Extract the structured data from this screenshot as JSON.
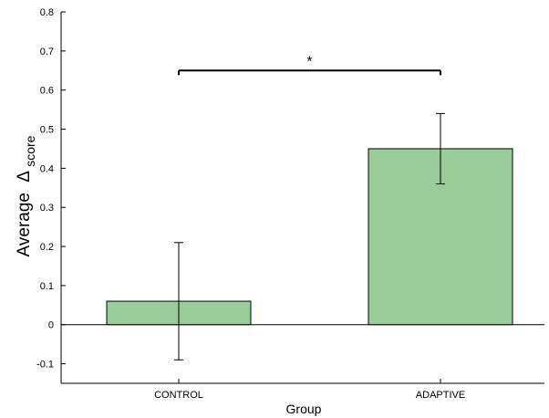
{
  "chart_data": {
    "type": "bar",
    "xlabel": "Group",
    "ylabel": "Average",
    "ylabel_symbol": "Δ",
    "ylabel_subscript": "score",
    "categories": [
      "CONTROL",
      "ADAPTIVE"
    ],
    "values": [
      0.06,
      0.45
    ],
    "errors": [
      0.15,
      0.09
    ],
    "ylim": [
      -0.15,
      0.8
    ],
    "yticks": [
      "-0.1",
      "0",
      "0.1",
      "0.2",
      "0.3",
      "0.4",
      "0.5",
      "0.6",
      "0.7",
      "0.8"
    ],
    "significance": {
      "between": [
        "CONTROL",
        "ADAPTIVE"
      ],
      "at_value": 0.65,
      "label": "*"
    },
    "bar_color": "#99cc99",
    "grid": false,
    "zero_line": true
  }
}
